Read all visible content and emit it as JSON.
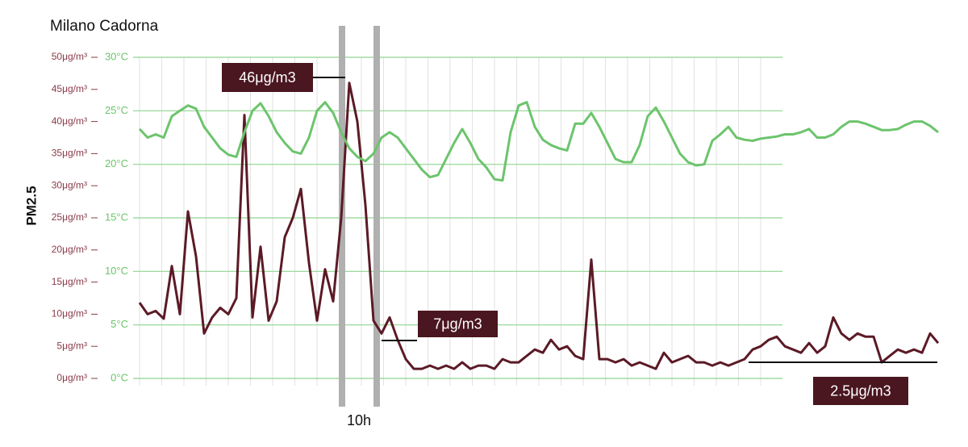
{
  "chart_data": {
    "type": "line",
    "title": "Milano Cadorna",
    "ylabel": "PM2.5",
    "ylim": [
      0,
      50
    ],
    "yticks": [
      {
        "value": 0,
        "label": "0μg/m³"
      },
      {
        "value": 5,
        "label": "5μg/m³"
      },
      {
        "value": 10,
        "label": "10μg/m³"
      },
      {
        "value": 15,
        "label": "15μg/m³"
      },
      {
        "value": 20,
        "label": "20μg/m³"
      },
      {
        "value": 25,
        "label": "25μg/m³"
      },
      {
        "value": 30,
        "label": "30μg/m³"
      },
      {
        "value": 35,
        "label": "35μg/m³"
      },
      {
        "value": 40,
        "label": "40μg/m³"
      },
      {
        "value": 45,
        "label": "45μg/m³"
      },
      {
        "value": 50,
        "label": "50μg/m³"
      }
    ],
    "y2lim": [
      0,
      30
    ],
    "y2ticks": [
      {
        "value": 0,
        "label": "0°C"
      },
      {
        "value": 5,
        "label": "5°C"
      },
      {
        "value": 10,
        "label": "10°C"
      },
      {
        "value": 15,
        "label": "15°C"
      },
      {
        "value": 20,
        "label": "20°C"
      },
      {
        "value": 25,
        "label": "25°C"
      },
      {
        "value": 30,
        "label": "30°C"
      }
    ],
    "grid": true,
    "series": [
      {
        "color": "#5b1a26",
        "label_color": "#8a3b4a",
        "values": [
          11.8,
          10,
          10.5,
          9.3,
          17.5,
          10,
          26,
          19,
          7,
          9.5,
          11,
          10,
          12.5,
          41,
          9.5,
          20.5,
          9,
          12,
          22,
          25,
          29.5,
          18,
          9,
          17,
          12,
          25,
          46,
          40,
          27,
          9,
          7,
          9.5,
          6,
          3,
          1.5,
          1.5,
          2,
          1.5,
          2,
          1.5,
          2.5,
          1.5,
          2,
          2,
          1.5,
          3,
          2.5,
          2.5,
          3.5,
          4.5,
          4,
          6,
          4.5,
          5,
          3.5,
          3,
          18.5,
          3,
          3,
          2.5,
          3,
          2,
          2.5,
          2,
          1.5,
          4,
          2.5,
          3,
          3.5,
          2.5,
          2.5,
          2,
          2.5,
          2,
          2.5,
          3,
          4.5,
          5,
          6,
          6.5,
          5,
          4.5,
          4,
          5.5,
          4,
          5,
          9.5,
          7,
          6,
          7,
          6.5,
          6.5,
          2.5,
          3.5,
          4.5,
          4,
          4.5,
          4,
          7,
          5.5
        ]
      },
      {
        "color": "#6cc46c",
        "axis": "y2",
        "values": [
          23.3,
          22.5,
          22.8,
          22.5,
          24.5,
          25,
          25.5,
          25.2,
          23.5,
          22.5,
          21.5,
          20.9,
          20.7,
          23,
          25,
          25.7,
          24.5,
          23,
          22,
          21.2,
          21,
          22.5,
          25,
          25.8,
          24.8,
          23,
          21.5,
          20.7,
          20.3,
          21,
          22.5,
          23,
          22.5,
          21.5,
          20.5,
          19.5,
          18.8,
          19,
          20.5,
          22,
          23.3,
          22,
          20.5,
          19.7,
          18.6,
          18.5,
          23,
          25.5,
          25.8,
          23.5,
          22.3,
          21.8,
          21.5,
          21.3,
          23.8,
          23.8,
          24.8,
          23.5,
          22,
          20.5,
          20.2,
          20.2,
          21.8,
          24.5,
          25.3,
          24,
          22.5,
          21,
          20.2,
          19.9,
          20,
          22.2,
          22.8,
          23.5,
          22.5,
          22.3,
          22.2,
          22.4,
          22.5,
          22.6,
          22.8,
          22.8,
          23,
          23.3,
          22.5,
          22.5,
          22.8,
          23.5,
          24,
          24,
          23.8,
          23.5,
          23.2,
          23.2,
          23.3,
          23.7,
          24,
          24,
          23.6,
          23
        ]
      }
    ],
    "annotations": [
      "46μg/m3",
      "7μg/m3",
      "2.5μg/m3",
      "10h"
    ]
  }
}
